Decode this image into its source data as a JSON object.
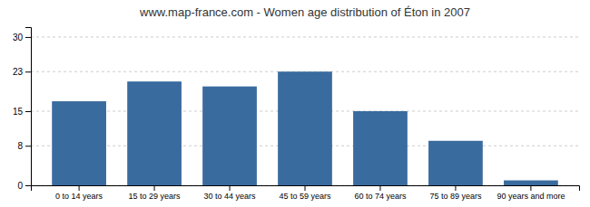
{
  "chart_data": {
    "type": "bar",
    "title": "www.map-france.com - Women age distribution of Éton in 2007",
    "categories": [
      "0 to 14 years",
      "15 to 29 years",
      "30 to 44 years",
      "45 to 59 years",
      "60 to 74 years",
      "75 to 89 years",
      "90 years and more"
    ],
    "values": [
      17,
      21,
      20,
      23,
      15,
      9,
      1
    ],
    "color": "#3a6b9f",
    "ylim": [
      0,
      32
    ],
    "yticks": [
      0,
      8,
      15,
      23,
      30
    ],
    "grid": true
  }
}
